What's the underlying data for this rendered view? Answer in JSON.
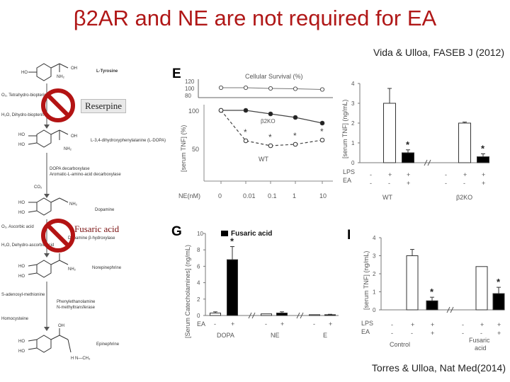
{
  "title": "β2AR and NE are not required for EA",
  "citation_top": "Vida & Ulloa, FASEB J (2012)",
  "citation_bottom": "Torres & Ulloa, Nat Med(2014)",
  "inhibitors": {
    "reserpine": "Reserpine",
    "fusaric": "Fusaric acid"
  },
  "pathway": {
    "l_tyrosine": "L-Tyrosine",
    "l_dopa": "L-3,4-dihydroxyphenylalanine (L-DOPA)",
    "dopa_decarboxylase": "DOPA decarboxylase",
    "aromatic": "Aromatic-L-amino-acid decarboxylase",
    "co2": "CO₂",
    "dopamine": "Dopamine",
    "dbh": "Dopamine β-hydroxylase",
    "norepinephrine": "Norepinephrine",
    "pnmt1": "Phenylethanolamine",
    "pnmt2": "N-methyltransferase",
    "sam": "S-adenosyl-methionine",
    "homocysteine": "Homocysteine",
    "epinephrine": "Epinephrine",
    "cofactor1": "O₂, Tetrahydro-biopterin",
    "cofactor2": "H₂O, Dihydro-biopterin",
    "cofactor3": "O₂, Ascorbic acid",
    "cofactor4": "H₂O, Dehydro-ascorbic acid"
  },
  "panel_E": {
    "letter": "E",
    "inset_title": "Cellular Survival (%)",
    "ylabel": "[serum TNF] (%)",
    "xlabel": "NE(nM)",
    "x_ticks": [
      "0",
      "0.01",
      "0.1",
      "1",
      "10"
    ],
    "y_ticks": [
      "50",
      "100"
    ],
    "inset_ticks": [
      "120",
      "100",
      "80"
    ],
    "label_b2ko": "β2KO",
    "label_wt": "WT",
    "star": "*"
  },
  "panel_F": {
    "ylabel": "[serum TNF] (ng/mL)",
    "y_ticks": [
      "0",
      "1",
      "2",
      "3",
      "4"
    ],
    "row1_label": "LPS",
    "row2_label": "EA",
    "lps": [
      "-",
      "+",
      "+",
      "-",
      "+",
      "+"
    ],
    "ea": [
      "-",
      "-",
      "+",
      "-",
      "-",
      "+"
    ],
    "group1": "WT",
    "group2": "β2KO",
    "star": "*"
  },
  "panel_G": {
    "letter": "G",
    "legend": "Fusaric acid",
    "ylabel": "[Serum Catecholamines] (ng/mL)",
    "y_ticks": [
      "0",
      "2",
      "4",
      "6",
      "8",
      "10"
    ],
    "ea_label": "EA",
    "ea": [
      "-",
      "+",
      "-",
      "+",
      "-",
      "+"
    ],
    "groups": [
      "DOPA",
      "NE",
      "E"
    ],
    "star": "*"
  },
  "panel_I": {
    "letter": "I",
    "ylabel": "[serum TNF] (ng/mL)",
    "y_ticks": [
      "0",
      "1",
      "2",
      "3",
      "4"
    ],
    "row1_label": "LPS",
    "row2_label": "EA",
    "lps": [
      "-",
      "+",
      "+",
      "-",
      "+",
      "+"
    ],
    "ea": [
      "-",
      "-",
      "+",
      "-",
      "-",
      "+"
    ],
    "group1": "Control",
    "group2a": "Fusaric",
    "group2b": "acid",
    "star": "*"
  },
  "chart_data": [
    {
      "type": "line",
      "panel": "E",
      "xlabel": "NE(nM)",
      "ylabel": "[serum TNF] (%)",
      "categories": [
        "0",
        "0.01",
        "0.1",
        "1",
        "10"
      ],
      "series": [
        {
          "name": "β2KO",
          "values": [
            100,
            100,
            95,
            90,
            82
          ]
        },
        {
          "name": "WT",
          "values": [
            100,
            57,
            50,
            52,
            58
          ]
        }
      ],
      "inset": {
        "title": "Cellular Survival (%)",
        "values": [
          100,
          100,
          98,
          97,
          95
        ]
      }
    },
    {
      "type": "bar",
      "panel": "F",
      "ylabel": "[serum TNF] (ng/mL)",
      "ylim": [
        0,
        4
      ],
      "groups": [
        "WT",
        "β2KO"
      ],
      "values": [
        0,
        3.0,
        0.5,
        0,
        2.0,
        0.3
      ]
    },
    {
      "type": "bar",
      "panel": "G",
      "ylabel": "[Serum Catecholamines] (ng/mL)",
      "ylim": [
        0,
        10
      ],
      "groups": [
        "DOPA",
        "NE",
        "E"
      ],
      "values": [
        0.3,
        6.8,
        0.2,
        0.3,
        0.1,
        0.1
      ]
    },
    {
      "type": "bar",
      "panel": "I",
      "ylabel": "[serum TNF] (ng/mL)",
      "ylim": [
        0,
        4
      ],
      "groups": [
        "Control",
        "Fusaric acid"
      ],
      "values": [
        0,
        3.0,
        0.5,
        0,
        2.4,
        0.9
      ]
    }
  ]
}
